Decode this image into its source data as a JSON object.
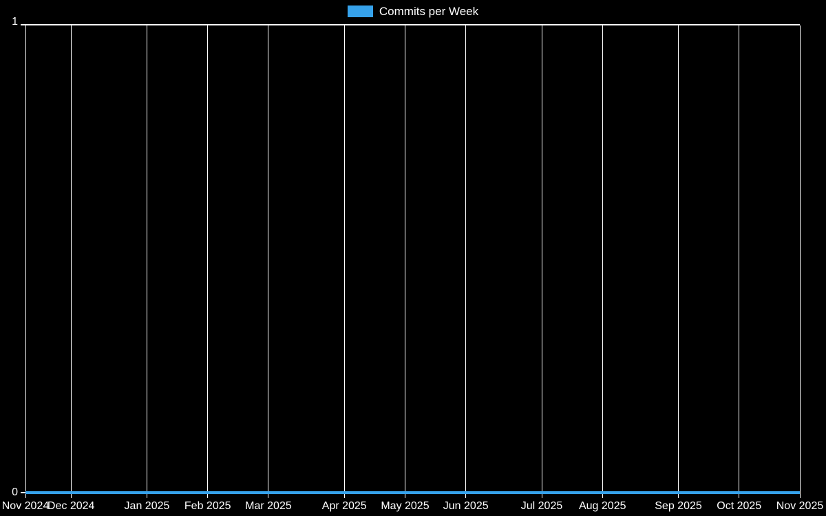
{
  "legend": {
    "label": "Commits per Week",
    "swatch_color": "#36a2eb"
  },
  "chart_data": {
    "type": "line",
    "title": "Commits per Week",
    "xlabel": "",
    "ylabel": "",
    "ylim": [
      0,
      1
    ],
    "y_ticks": [
      "0",
      "1"
    ],
    "grid": "vertical-monthly-gridlines, top-and-bottom-borders",
    "legend_position": "top-center",
    "total_weeks": 51,
    "x_ticks": [
      {
        "label": "Nov 2024",
        "week": 0
      },
      {
        "label": "Dec 2024",
        "week": 3
      },
      {
        "label": "Jan 2025",
        "week": 8
      },
      {
        "label": "Feb 2025",
        "week": 12
      },
      {
        "label": "Mar 2025",
        "week": 16
      },
      {
        "label": "Apr 2025",
        "week": 21
      },
      {
        "label": "May 2025",
        "week": 25
      },
      {
        "label": "Jun 2025",
        "week": 29
      },
      {
        "label": "Jul 2025",
        "week": 34
      },
      {
        "label": "Aug 2025",
        "week": 38
      },
      {
        "label": "Sep 2025",
        "week": 43
      },
      {
        "label": "Oct 2025",
        "week": 47
      },
      {
        "label": "Nov 2025",
        "week": 51
      }
    ],
    "series": [
      {
        "name": "Commits per Week",
        "color": "#36a2eb",
        "line_width": 4,
        "values": [
          0,
          0,
          0,
          0,
          0,
          0,
          0,
          0,
          0,
          0,
          0,
          0,
          0,
          0,
          0,
          0,
          0,
          0,
          0,
          0,
          0,
          0,
          0,
          0,
          0,
          0,
          0,
          0,
          0,
          0,
          0,
          0,
          0,
          0,
          0,
          0,
          0,
          0,
          0,
          0,
          0,
          0,
          0,
          0,
          0,
          0,
          0,
          0,
          0,
          0,
          0,
          0
        ]
      }
    ],
    "colors": {
      "background": "#000000",
      "grid": "#ffffff",
      "text": "#ffffff",
      "line": "#36a2eb"
    }
  }
}
